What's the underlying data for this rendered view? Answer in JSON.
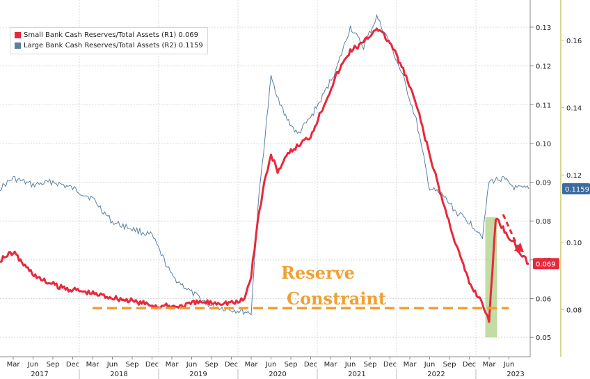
{
  "chart_data": {
    "type": "line",
    "legend_placement": "top-left",
    "grid": true,
    "colors": {
      "small": "#e8283b",
      "large": "#5a7fa0",
      "reserve_line": "#f0a032",
      "highlight": "#8fbf5a",
      "right_axis": "#c8cc6a"
    },
    "x_axis": {
      "months": [
        "Mar",
        "Jun",
        "Sep",
        "Dec",
        "Mar",
        "Jun",
        "Sep",
        "Dec",
        "Mar",
        "Jun",
        "Sep",
        "Dec",
        "Mar",
        "Jun",
        "Sep",
        "Dec",
        "Mar",
        "Jun",
        "Sep",
        "Dec",
        "Mar",
        "Jun",
        "Sep",
        "Dec",
        "Mar",
        "Jun"
      ],
      "years": [
        "2017",
        "2018",
        "2019",
        "2020",
        "2021",
        "2022",
        "2023"
      ],
      "range": [
        "2017-01",
        "2023-09"
      ]
    },
    "y_axis_r1": {
      "range": [
        0.045,
        0.137
      ],
      "ticks": [
        "0.05",
        "0.06",
        "0.07",
        "0.08",
        "0.09",
        "0.10",
        "0.11",
        "0.12",
        "0.13"
      ]
    },
    "y_axis_r2": {
      "range": [
        0.066,
        0.172
      ],
      "ticks": [
        "0.08",
        "0.10",
        "0.12",
        "0.14",
        "0.16"
      ]
    },
    "series": [
      {
        "name": "Small Bank Cash Reserves/Total Assets (R1) 0.069",
        "axis": "R1",
        "last_value": "0.069",
        "points": [
          [
            "2017-01",
            0.07
          ],
          [
            "2017-03",
            0.072
          ],
          [
            "2017-05",
            0.068
          ],
          [
            "2017-07",
            0.065
          ],
          [
            "2017-10",
            0.063
          ],
          [
            "2018-01",
            0.062
          ],
          [
            "2018-04",
            0.061
          ],
          [
            "2018-07",
            0.06
          ],
          [
            "2018-10",
            0.059
          ],
          [
            "2019-01",
            0.058
          ],
          [
            "2019-04",
            0.058
          ],
          [
            "2019-07",
            0.059
          ],
          [
            "2019-10",
            0.059
          ],
          [
            "2020-01",
            0.059
          ],
          [
            "2020-02",
            0.06
          ],
          [
            "2020-03",
            0.066
          ],
          [
            "2020-04",
            0.08
          ],
          [
            "2020-05",
            0.09
          ],
          [
            "2020-06",
            0.097
          ],
          [
            "2020-07",
            0.093
          ],
          [
            "2020-09",
            0.098
          ],
          [
            "2020-12",
            0.102
          ],
          [
            "2021-02",
            0.11
          ],
          [
            "2021-04",
            0.118
          ],
          [
            "2021-06",
            0.124
          ],
          [
            "2021-08",
            0.126
          ],
          [
            "2021-10",
            0.13
          ],
          [
            "2021-12",
            0.126
          ],
          [
            "2022-02",
            0.119
          ],
          [
            "2022-04",
            0.11
          ],
          [
            "2022-06",
            0.097
          ],
          [
            "2022-08",
            0.085
          ],
          [
            "2022-10",
            0.074
          ],
          [
            "2022-12",
            0.064
          ],
          [
            "2023-02",
            0.059
          ],
          [
            "2023-03",
            0.054
          ],
          [
            "2023-04",
            0.081
          ],
          [
            "2023-06",
            0.076
          ],
          [
            "2023-08",
            0.071
          ],
          [
            "2023-09",
            0.069
          ]
        ]
      },
      {
        "name": "Large Bank Cash Reserves/Total Assets (R2) 0.1159",
        "axis": "R2",
        "last_value": "0.1159",
        "points": [
          [
            "2017-01",
            0.116
          ],
          [
            "2017-03",
            0.119
          ],
          [
            "2017-06",
            0.117
          ],
          [
            "2017-09",
            0.118
          ],
          [
            "2017-12",
            0.116
          ],
          [
            "2018-03",
            0.113
          ],
          [
            "2018-06",
            0.106
          ],
          [
            "2018-09",
            0.104
          ],
          [
            "2018-12",
            0.102
          ],
          [
            "2019-03",
            0.09
          ],
          [
            "2019-06",
            0.085
          ],
          [
            "2019-09",
            0.081
          ],
          [
            "2019-12",
            0.08
          ],
          [
            "2020-03",
            0.079
          ],
          [
            "2020-04",
            0.11
          ],
          [
            "2020-06",
            0.149
          ],
          [
            "2020-08",
            0.138
          ],
          [
            "2020-10",
            0.132
          ],
          [
            "2020-12",
            0.137
          ],
          [
            "2021-02",
            0.144
          ],
          [
            "2021-04",
            0.152
          ],
          [
            "2021-06",
            0.164
          ],
          [
            "2021-08",
            0.158
          ],
          [
            "2021-10",
            0.167
          ],
          [
            "2021-12",
            0.159
          ],
          [
            "2022-02",
            0.149
          ],
          [
            "2022-04",
            0.136
          ],
          [
            "2022-06",
            0.116
          ],
          [
            "2022-08",
            0.114
          ],
          [
            "2022-10",
            0.109
          ],
          [
            "2022-12",
            0.106
          ],
          [
            "2023-02",
            0.102
          ],
          [
            "2023-03",
            0.118
          ],
          [
            "2023-05",
            0.119
          ],
          [
            "2023-07",
            0.116
          ],
          [
            "2023-09",
            0.1159
          ]
        ]
      }
    ],
    "reserve_constraint": {
      "value": 0.0575,
      "label_line1": "Reserve",
      "label_line2": "Constraint"
    },
    "highlight_window": [
      "2023-02",
      "2023-04"
    ]
  }
}
